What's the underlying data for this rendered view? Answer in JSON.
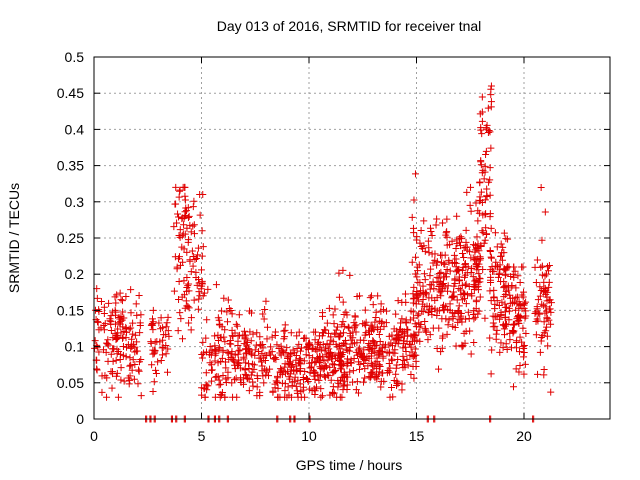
{
  "chart_data": {
    "type": "scatter",
    "title": "Day 013 of 2016, SRMTID for receiver tnal",
    "xlabel": "GPS time / hours",
    "ylabel": "SRMTID / TECUs",
    "xlim": [
      0,
      24
    ],
    "ylim": [
      0,
      0.5
    ],
    "x_ticks": [
      0,
      5,
      10,
      15,
      20
    ],
    "y_ticks": [
      0,
      0.05,
      0.1,
      0.15,
      0.2,
      0.25,
      0.3,
      0.35,
      0.4,
      0.45,
      0.5
    ],
    "x_tick_labels": [
      "0",
      "5",
      "10",
      "15",
      "20"
    ],
    "y_tick_labels": [
      "0",
      "0.05",
      "0.1",
      "0.15",
      "0.2",
      "0.25",
      "0.3",
      "0.35",
      "0.4",
      "0.45",
      "0.5"
    ],
    "grid": true,
    "marker": "+",
    "color": "#e00000",
    "zero_points_x": [
      2.4,
      2.6,
      2.8,
      3.6,
      3.8,
      4.2,
      5.3,
      5.6,
      5.8,
      6.2,
      8.5,
      9.1,
      9.3,
      10.0,
      15.5,
      15.8,
      18.4,
      20.4
    ],
    "segments": [
      {
        "x0": 0.0,
        "x1": 2.2,
        "n": 150,
        "base": 0.1,
        "spread": 0.035,
        "peak": 0.18
      },
      {
        "x0": 2.6,
        "x1": 3.5,
        "n": 45,
        "base": 0.1,
        "spread": 0.03,
        "peak": 0.15
      },
      {
        "x0": 3.7,
        "x1": 4.4,
        "n": 55,
        "base": 0.24,
        "spread": 0.05,
        "peak": 0.32
      },
      {
        "x0": 4.3,
        "x1": 5.1,
        "n": 55,
        "base": 0.2,
        "spread": 0.05,
        "peak": 0.31
      },
      {
        "x0": 5.0,
        "x1": 6.2,
        "n": 80,
        "base": 0.09,
        "spread": 0.035,
        "peak": 0.19
      },
      {
        "x0": 6.2,
        "x1": 8.0,
        "n": 130,
        "base": 0.085,
        "spread": 0.03,
        "peak": 0.17
      },
      {
        "x0": 8.0,
        "x1": 9.0,
        "n": 60,
        "base": 0.07,
        "spread": 0.03,
        "peak": 0.13
      },
      {
        "x0": 9.0,
        "x1": 10.6,
        "n": 130,
        "base": 0.07,
        "spread": 0.025,
        "peak": 0.12
      },
      {
        "x0": 10.6,
        "x1": 12.0,
        "n": 150,
        "base": 0.085,
        "spread": 0.03,
        "peak": 0.22
      },
      {
        "x0": 12.0,
        "x1": 13.5,
        "n": 140,
        "base": 0.1,
        "spread": 0.03,
        "peak": 0.17
      },
      {
        "x0": 13.5,
        "x1": 15.0,
        "n": 110,
        "base": 0.1,
        "spread": 0.03,
        "peak": 0.18
      },
      {
        "x0": 14.8,
        "x1": 15.5,
        "n": 70,
        "base": 0.17,
        "spread": 0.05,
        "peak": 0.34
      },
      {
        "x0": 15.5,
        "x1": 17.3,
        "n": 180,
        "base": 0.18,
        "spread": 0.04,
        "peak": 0.28
      },
      {
        "x0": 17.3,
        "x1": 18.0,
        "n": 80,
        "base": 0.21,
        "spread": 0.05,
        "peak": 0.32
      },
      {
        "x0": 17.9,
        "x1": 18.5,
        "n": 70,
        "base": 0.3,
        "spread": 0.08,
        "peak": 0.46
      },
      {
        "x0": 18.4,
        "x1": 19.3,
        "n": 90,
        "base": 0.17,
        "spread": 0.04,
        "peak": 0.27
      },
      {
        "x0": 19.3,
        "x1": 20.1,
        "n": 80,
        "base": 0.14,
        "spread": 0.04,
        "peak": 0.21
      },
      {
        "x0": 20.5,
        "x1": 21.3,
        "n": 70,
        "base": 0.16,
        "spread": 0.04,
        "peak": 0.33
      }
    ]
  }
}
